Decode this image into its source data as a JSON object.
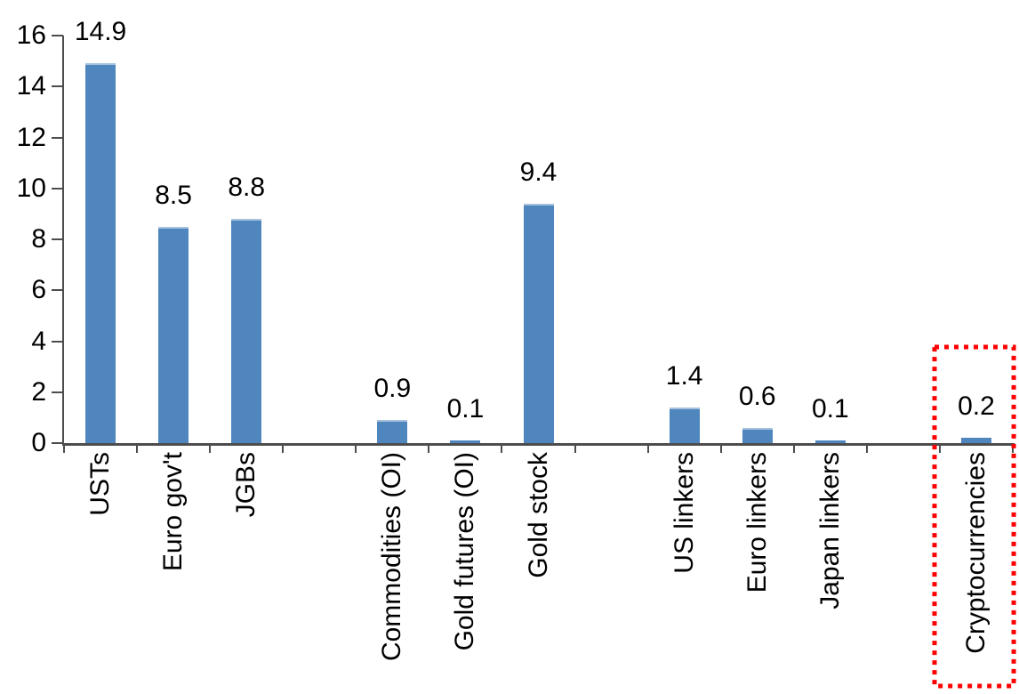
{
  "chart_data": {
    "type": "bar",
    "title": "",
    "xlabel": "",
    "ylabel": "",
    "categories": [
      "USTs",
      "Euro gov't",
      "JGBs",
      "Commodities (OI)",
      "Gold futures (OI)",
      "Gold stock",
      "US linkers",
      "Euro linkers",
      "Japan linkers",
      "Cryptocurrencies"
    ],
    "values": [
      14.9,
      8.5,
      8.8,
      0.9,
      0.1,
      9.4,
      1.4,
      0.6,
      0.1,
      0.2
    ],
    "value_labels": [
      "14.9",
      "8.5",
      "8.8",
      "0.9",
      "0.1",
      "9.4",
      "1.4",
      "0.6",
      "0.1",
      "0.2"
    ],
    "slots": [
      0,
      1,
      2,
      4,
      5,
      6,
      8,
      9,
      10,
      12
    ],
    "num_slots": 13,
    "ylim": [
      0,
      16
    ],
    "yticks": [
      0,
      2,
      4,
      6,
      8,
      10,
      12,
      14,
      16
    ],
    "ytick_labels": [
      "0",
      "2",
      "4",
      "6",
      "8",
      "10",
      "12",
      "14",
      "16"
    ],
    "grid": false,
    "legend": false,
    "bar_color": "#4e86bd",
    "bar_edge_color": "#a6c2de",
    "axis_color": "#4d4d4d",
    "text_color": "#000000",
    "highlight": {
      "category": "Cryptocurrencies",
      "slot": 12,
      "color": "#ff0000",
      "style": "dotted-box"
    }
  }
}
